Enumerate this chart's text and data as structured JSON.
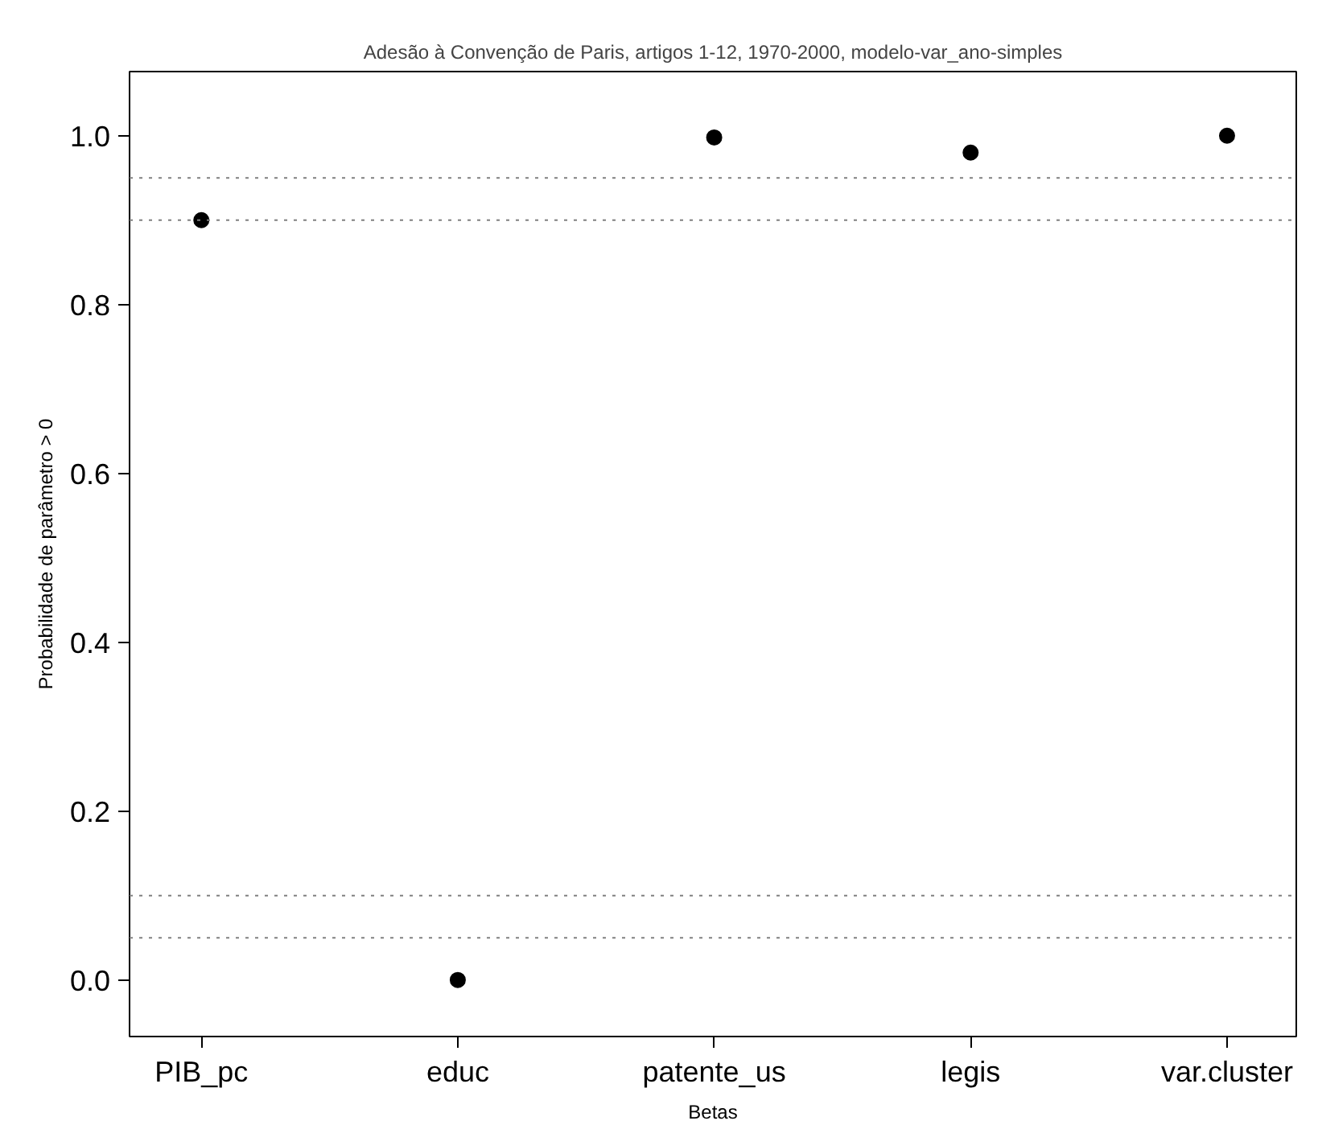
{
  "chart_data": {
    "type": "scatter",
    "title": "Adesão à Convenção de Paris, artigos 1-12, 1970-2000, modelo-var_ano-simples",
    "xlabel": "Betas",
    "ylabel": "Probabilidade de parâmetro > 0",
    "categories": [
      "PIB_pc",
      "educ",
      "patente_us",
      "legis",
      "var.cluster"
    ],
    "values": [
      0.9,
      0.0,
      0.998,
      0.98,
      1.0
    ],
    "color": "#000000",
    "marker": "circle",
    "ylim": [
      -0.067,
      1.076
    ],
    "yticks": [
      {
        "value": 0,
        "label": "0.0"
      },
      {
        "value": 0.2,
        "label": "0.2"
      },
      {
        "value": 0.4,
        "label": "0.4"
      },
      {
        "value": 0.6,
        "label": "0.6"
      },
      {
        "value": 0.8,
        "label": "0.8"
      },
      {
        "value": 1,
        "label": "1.0"
      }
    ],
    "grid": false,
    "ref_lines": [
      {
        "axis": "y",
        "value": 0.95,
        "label": null,
        "color": "#808080",
        "line_style": "dotted"
      },
      {
        "axis": "y",
        "value": 0.9,
        "label": null,
        "color": "#808080",
        "line_style": "dotted"
      },
      {
        "axis": "y",
        "value": 0.1,
        "label": null,
        "color": "#808080",
        "line_style": "dotted"
      },
      {
        "axis": "y",
        "value": 0.05,
        "label": null,
        "color": "#808080",
        "line_style": "dotted"
      }
    ]
  }
}
